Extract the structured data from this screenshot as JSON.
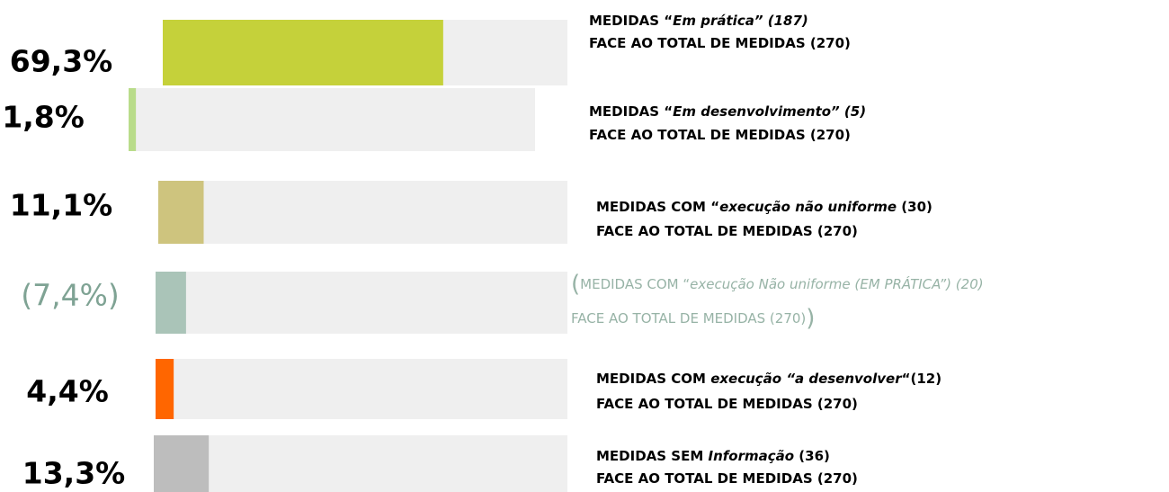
{
  "chart_data": {
    "type": "bar",
    "orientation": "horizontal",
    "xlim": [
      0,
      100
    ],
    "track_color": "#efefef",
    "values": [
      69.3,
      1.8,
      11.1,
      7.4,
      4.4,
      13.3
    ],
    "value_labels": [
      "69,3%",
      "1,8%",
      "11,1%",
      "(7,4%)",
      "4,4%",
      "13,3%"
    ],
    "colors": [
      "#c5d13a",
      "#b9dc8a",
      "#cec47e",
      "#aac4b8",
      "#ff6600",
      "#bdbdbd"
    ],
    "muted": [
      false,
      false,
      false,
      true,
      false,
      false
    ],
    "descriptions": [
      [
        [
          {
            "text": "MEDIDAS “",
            "bold": true
          },
          {
            "text": "Em prática” (187)",
            "bold": true,
            "italic": true
          }
        ],
        [
          {
            "text": "FACE AO TOTAL DE MEDIDAS (270)",
            "bold": true
          }
        ]
      ],
      [
        [
          {
            "text": "MEDIDAS “",
            "bold": true
          },
          {
            "text": "Em desenvolvimento” (5)",
            "bold": true,
            "italic": true
          }
        ],
        [
          {
            "text": "FACE AO TOTAL DE MEDIDAS (270)",
            "bold": true
          }
        ]
      ],
      [
        [
          {
            "text": "MEDIDAS COM “",
            "bold": true
          },
          {
            "text": "execução não uniforme",
            "bold": true,
            "italic": true
          },
          {
            "text": " (30)",
            "bold": true
          }
        ],
        [
          {
            "text": "FACE AO TOTAL DE MEDIDAS (270)",
            "bold": true
          }
        ]
      ],
      [
        [
          {
            "text": "(",
            "big": true
          },
          {
            "text": "MEDIDAS COM “"
          },
          {
            "text": "execução Não uniforme (EM PRÁTICA”) (20)",
            "italic": true
          }
        ],
        [
          {
            "text": "FACE AO TOTAL DE MEDIDAS (270)"
          },
          {
            "text": ")",
            "big": true
          }
        ]
      ],
      [
        [
          {
            "text": "MEDIDAS COM ",
            "bold": true
          },
          {
            "text": "execução “a desenvolver",
            "bold": true,
            "italic": true
          },
          {
            "text": "“(12)",
            "bold": true
          }
        ],
        [
          {
            "text": "FACE AO TOTAL DE MEDIDAS (270)",
            "bold": true
          }
        ]
      ],
      [
        [
          {
            "text": "MEDIDAS SEM ",
            "bold": true
          },
          {
            "text": "Informação",
            "bold": true,
            "italic": true
          },
          {
            "text": " (36)",
            "bold": true
          }
        ],
        [
          {
            "text": "FACE AO TOTAL DE MEDIDAS (270)",
            "bold": true
          }
        ]
      ]
    ]
  }
}
